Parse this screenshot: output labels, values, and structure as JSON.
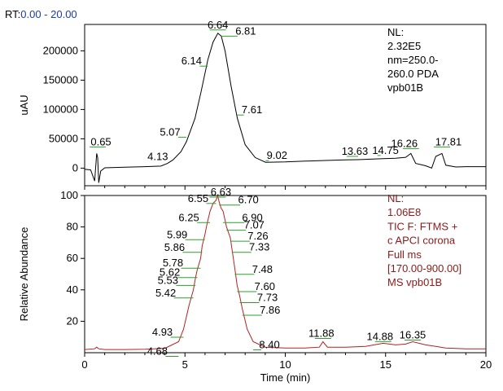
{
  "rt_range": {
    "prefix": "RT:",
    "value": "0.00 - 20.00"
  },
  "colors": {
    "top_trace": "#000000",
    "bottom_trace": "#b22222",
    "peak_marker": "#2ca02c",
    "note_bottom": "#8b1a1a",
    "rt_value": "#1f3c9c"
  },
  "chart_data": [
    {
      "type": "line",
      "title": "",
      "xlabel": "",
      "ylabel": "uAU",
      "xlim": [
        0,
        20
      ],
      "ylim": [
        -30000,
        245000
      ],
      "x_ticks": [
        0,
        5,
        10,
        15,
        20
      ],
      "y_ticks": [
        0,
        50000,
        100000,
        150000,
        200000
      ],
      "y_tick_labels": [
        "0",
        "50000",
        "100000",
        "150000",
        "200000"
      ],
      "annotation_lines": [
        "NL:",
        "2.32E5",
        "nm=250.0-",
        "260.0  PDA",
        "vpb01B"
      ],
      "series": [
        {
          "points": [
            [
              0.0,
              -2000
            ],
            [
              0.3,
              -3000
            ],
            [
              0.5,
              -22000
            ],
            [
              0.6,
              25000
            ],
            [
              0.65,
              18000
            ],
            [
              0.7,
              -25000
            ],
            [
              0.8,
              -5000
            ],
            [
              1.0,
              500
            ],
            [
              2.0,
              1500
            ],
            [
              3.0,
              2500
            ],
            [
              3.8,
              3500
            ],
            [
              4.13,
              8000
            ],
            [
              4.4,
              14000
            ],
            [
              4.8,
              28000
            ],
            [
              5.07,
              45000
            ],
            [
              5.5,
              85000
            ],
            [
              5.8,
              130000
            ],
            [
              6.14,
              185000
            ],
            [
              6.4,
              215000
            ],
            [
              6.64,
              230000
            ],
            [
              6.81,
              225000
            ],
            [
              7.0,
              200000
            ],
            [
              7.3,
              140000
            ],
            [
              7.61,
              85000
            ],
            [
              8.0,
              40000
            ],
            [
              8.5,
              18000
            ],
            [
              9.02,
              10000
            ],
            [
              10.0,
              10500
            ],
            [
              11.0,
              12000
            ],
            [
              12.0,
              13000
            ],
            [
              13.0,
              14000
            ],
            [
              13.63,
              14500
            ],
            [
              14.75,
              16000
            ],
            [
              15.5,
              17000
            ],
            [
              16.0,
              18500
            ],
            [
              16.26,
              25000
            ],
            [
              16.5,
              8000
            ],
            [
              17.0,
              4000
            ],
            [
              17.3,
              0
            ],
            [
              17.5,
              20000
            ],
            [
              17.81,
              25000
            ],
            [
              18.0,
              5000
            ],
            [
              18.5,
              2000
            ],
            [
              19.0,
              2500
            ],
            [
              20.0,
              2500
            ]
          ]
        }
      ],
      "peak_labels": [
        {
          "x": 6.64,
          "y": 230000,
          "label": "6.64"
        },
        {
          "x": 6.81,
          "y": 225000,
          "label": "6.81"
        },
        {
          "x": 6.14,
          "y": 185000,
          "label": "6.14"
        },
        {
          "x": 7.61,
          "y": 85000,
          "label": "7.61"
        },
        {
          "x": 5.07,
          "y": 50000,
          "label": "5.07"
        },
        {
          "x": 0.65,
          "y": 25000,
          "label": "0.65"
        },
        {
          "x": 4.13,
          "y": 8000,
          "label": "4.13"
        },
        {
          "x": 9.02,
          "y": 10000,
          "label": "9.02"
        },
        {
          "x": 13.63,
          "y": 14500,
          "label": "13.63"
        },
        {
          "x": 14.75,
          "y": 16000,
          "label": "14.75"
        },
        {
          "x": 16.26,
          "y": 25000,
          "label": "16.26"
        },
        {
          "x": 17.81,
          "y": 25000,
          "label": "17.81"
        }
      ]
    },
    {
      "type": "line",
      "title": "",
      "xlabel": "Time (min)",
      "ylabel": "Relative Abundance",
      "xlim": [
        0,
        20
      ],
      "ylim": [
        0,
        100
      ],
      "x_ticks": [
        0,
        5,
        10,
        15,
        20
      ],
      "x_tick_labels": [
        "0",
        "5",
        "10",
        "15",
        "20"
      ],
      "y_ticks": [
        20,
        40,
        60,
        80,
        100
      ],
      "y_tick_labels": [
        "20",
        "40",
        "60",
        "80",
        "100"
      ],
      "annotation_lines": [
        "NL:",
        "1.06E8",
        "TIC F: FTMS +",
        "c APCI corona",
        "Full ms",
        "[170.00-900.00]",
        "MS vpb01B"
      ],
      "series": [
        {
          "points": [
            [
              0.0,
              2
            ],
            [
              0.5,
              2.5
            ],
            [
              0.6,
              3.5
            ],
            [
              0.7,
              2.5
            ],
            [
              1.0,
              2
            ],
            [
              2.0,
              2
            ],
            [
              3.0,
              2.2
            ],
            [
              4.0,
              2.8
            ],
            [
              4.68,
              7
            ],
            [
              4.93,
              15
            ],
            [
              5.2,
              30
            ],
            [
              5.42,
              40
            ],
            [
              5.53,
              48
            ],
            [
              5.62,
              53
            ],
            [
              5.78,
              60
            ],
            [
              5.86,
              68
            ],
            [
              5.99,
              75
            ],
            [
              6.1,
              82
            ],
            [
              6.25,
              90
            ],
            [
              6.4,
              95
            ],
            [
              6.55,
              97
            ],
            [
              6.63,
              100
            ],
            [
              6.7,
              96
            ],
            [
              6.8,
              92
            ],
            [
              6.9,
              90
            ],
            [
              7.07,
              80
            ],
            [
              7.26,
              73
            ],
            [
              7.33,
              67
            ],
            [
              7.48,
              54
            ],
            [
              7.6,
              43
            ],
            [
              7.73,
              36
            ],
            [
              7.86,
              28
            ],
            [
              8.1,
              15
            ],
            [
              8.4,
              7
            ],
            [
              9.0,
              3.5
            ],
            [
              10.0,
              3
            ],
            [
              11.0,
              3
            ],
            [
              11.7,
              3.5
            ],
            [
              11.88,
              7
            ],
            [
              12.1,
              3.5
            ],
            [
              13.0,
              3.5
            ],
            [
              14.0,
              4
            ],
            [
              14.88,
              6
            ],
            [
              15.5,
              5
            ],
            [
              16.0,
              5.5
            ],
            [
              16.35,
              7
            ],
            [
              17.0,
              5
            ],
            [
              17.5,
              4
            ],
            [
              18.0,
              3
            ],
            [
              19.0,
              2.5
            ],
            [
              20.0,
              2.5
            ]
          ]
        }
      ],
      "peak_labels": [
        {
          "x": 6.55,
          "y": 97,
          "label": "6.55"
        },
        {
          "x": 6.63,
          "y": 100,
          "label": "6.63"
        },
        {
          "x": 6.7,
          "y": 96,
          "label": "6.70"
        },
        {
          "x": 6.25,
          "y": 90,
          "label": "6.25"
        },
        {
          "x": 6.9,
          "y": 90,
          "label": "6.90"
        },
        {
          "x": 5.99,
          "y": 75,
          "label": "5.99"
        },
        {
          "x": 7.07,
          "y": 80,
          "label": "7.07"
        },
        {
          "x": 5.86,
          "y": 68,
          "label": "5.86"
        },
        {
          "x": 7.26,
          "y": 73,
          "label": "7.26"
        },
        {
          "x": 5.78,
          "y": 60,
          "label": "5.78"
        },
        {
          "x": 7.33,
          "y": 67,
          "label": "7.33"
        },
        {
          "x": 5.62,
          "y": 53,
          "label": "5.62"
        },
        {
          "x": 7.48,
          "y": 54,
          "label": "7.48"
        },
        {
          "x": 5.53,
          "y": 48,
          "label": "5.53"
        },
        {
          "x": 7.6,
          "y": 43,
          "label": "7.60"
        },
        {
          "x": 5.42,
          "y": 40,
          "label": "5.42"
        },
        {
          "x": 7.73,
          "y": 36,
          "label": "7.73"
        },
        {
          "x": 7.86,
          "y": 28,
          "label": "7.86"
        },
        {
          "x": 4.93,
          "y": 15,
          "label": "4.93"
        },
        {
          "x": 4.68,
          "y": 7,
          "label": "4.68"
        },
        {
          "x": 8.4,
          "y": 7,
          "label": "8.40"
        },
        {
          "x": 11.88,
          "y": 7,
          "label": "11.88"
        },
        {
          "x": 14.88,
          "y": 6,
          "label": "14.88"
        },
        {
          "x": 16.35,
          "y": 7,
          "label": "16.35"
        }
      ]
    }
  ]
}
